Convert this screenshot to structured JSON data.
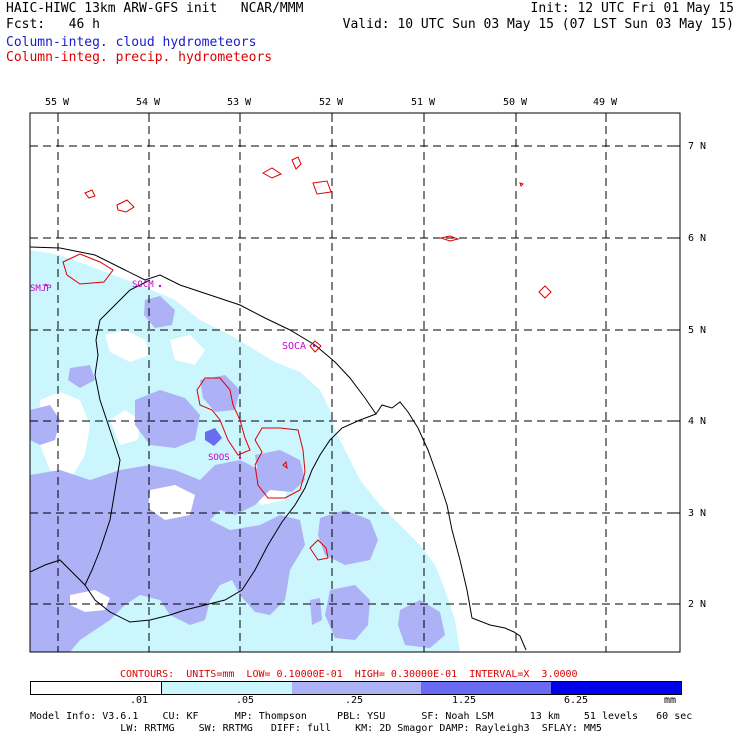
{
  "header": {
    "line1_left": "HAIC-HIWC 13km ARW-GFS init   NCAR/MMM",
    "line1_right": "Init: 12 UTC Fri 01 May 15",
    "line2_left": "Fcst:   46 h",
    "line2_right": "Valid: 10 UTC Sun 03 May 15 (07 LST Sun 03 May 15)",
    "legend_blue": "Column-integ. cloud hydrometeors",
    "legend_red": "Column-integ. precip. hydrometeors",
    "blue_color": "#1a1ad0",
    "red_color": "#dd0000"
  },
  "map": {
    "lon_labels": [
      "55 W",
      "54 W",
      "53 W",
      "52 W",
      "51 W",
      "50 W",
      "49 W"
    ],
    "lat_labels": [
      "7 N",
      "6 N",
      "5 N",
      "4 N",
      "3 N",
      "2 N"
    ],
    "stations": [
      "SMJP",
      "SOCM",
      "SOCA",
      "SOOS"
    ]
  },
  "contours": {
    "text": "CONTOURS:  UNITS=mm  LOW= 0.10000E-01  HIGH= 0.30000E-01  INTERVAL=X  3.0000"
  },
  "colorbar": {
    "ticks": [
      ".01",
      ".05",
      ".25",
      "1.25",
      "6.25"
    ],
    "unit": "mm",
    "colors": [
      "#ffffff",
      "#ccf6fd",
      "#adb1f6",
      "#6a6af2",
      "#0000ec"
    ]
  },
  "footer": {
    "line1": "Model Info: V3.6.1    CU: KF      MP: Thompson     PBL: YSU      SF: Noah LSM      13 km    51 levels   60 sec",
    "line2": "               LW: RRTMG    SW: RRTMG   DIFF: full    KM: 2D Smagor DAMP: Rayleigh3  SFLAY: MM5"
  }
}
